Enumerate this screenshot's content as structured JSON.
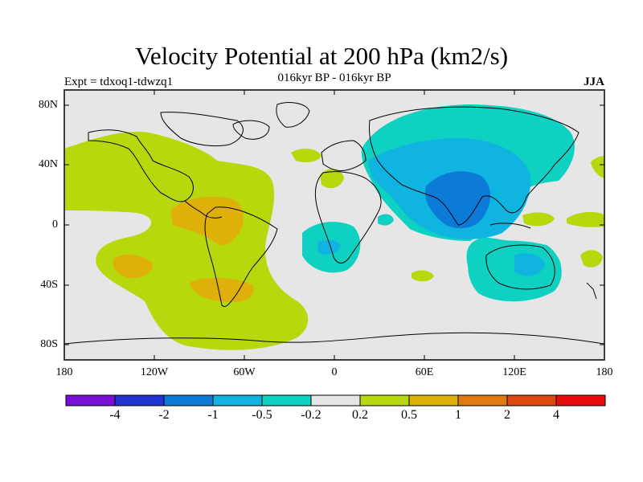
{
  "map": {
    "title": "Velocity Potential at 200 hPa (km2/s)",
    "subtitle": "016kyr BP - 016kyr BP",
    "left_label": "Expt = tdxoq1-tdwzq1",
    "right_label": "JJA",
    "lat_ticks": [
      "80N",
      "40N",
      "0",
      "40S",
      "80S"
    ],
    "lon_ticks": [
      "180",
      "120W",
      "60W",
      "0",
      "60E",
      "120E",
      "180"
    ]
  },
  "colorbar": {
    "labels": [
      "-4",
      "-2",
      "-1",
      "-0.5",
      "-0.2",
      "0.2",
      "0.5",
      "1",
      "2",
      "4"
    ],
    "colors": [
      "#7a10d8",
      "#2233d5",
      "#0c7bd8",
      "#0fb4e0",
      "#0ed1c2",
      "#e6e6e6",
      "#b8d80e",
      "#dfb00a",
      "#e07a10",
      "#e04610",
      "#e80c0c"
    ]
  },
  "palette": {
    "neutral": "#e6e6e6",
    "pos1": "#b8d80e",
    "pos2": "#dfb00a",
    "neg1": "#0ed1c2",
    "neg2": "#0fb4e0",
    "neg3": "#0c7bd8",
    "coast": "#000000"
  }
}
